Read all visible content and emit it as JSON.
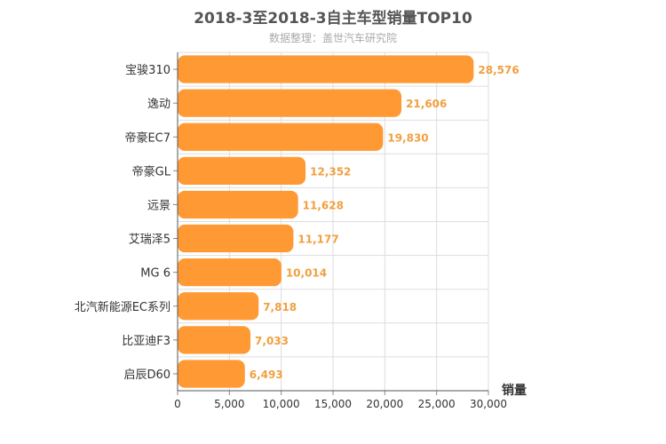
{
  "chart_data": {
    "type": "bar",
    "orientation": "horizontal",
    "title": "2018-3至2018-3自主车型销量TOP10",
    "subtitle": "数据整理：盖世汽车研究院",
    "xlabel": "销量",
    "ylabel": "",
    "xlim": [
      0,
      30000
    ],
    "x_ticks": [
      "0",
      "5,000",
      "10,000",
      "15,000",
      "20,000",
      "25,000",
      "30,000"
    ],
    "x_tick_values": [
      0,
      5000,
      10000,
      15000,
      20000,
      25000,
      30000
    ],
    "grid": true,
    "bar_color": "#ff9933",
    "label_color": "#f0a040",
    "categories": [
      "宝骏310",
      "逸动",
      "帝豪EC7",
      "帝豪GL",
      "远景",
      "艾瑞泽5",
      "MG 6",
      "北汽新能源EC系列",
      "比亚迪F3",
      "启辰D60"
    ],
    "values": [
      28576,
      21606,
      19830,
      12352,
      11628,
      11177,
      10014,
      7818,
      7033,
      6493
    ],
    "value_labels": [
      "28,576",
      "21,606",
      "19,830",
      "12,352",
      "11,628",
      "11,177",
      "10,014",
      "7,818",
      "7,033",
      "6,493"
    ]
  }
}
